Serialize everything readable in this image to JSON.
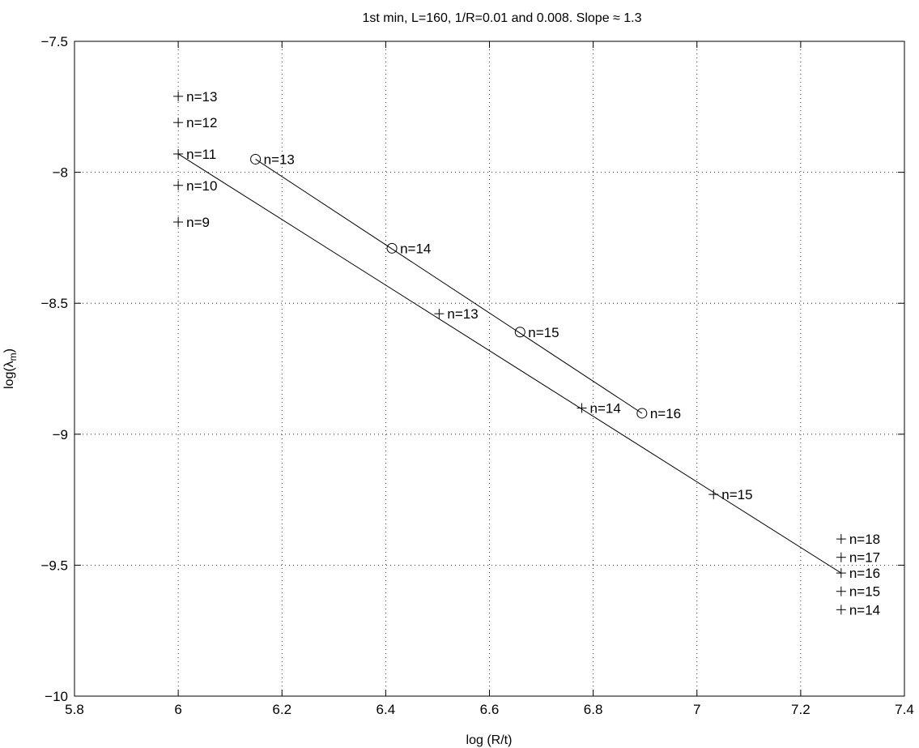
{
  "chart_data": {
    "type": "scatter",
    "title": "1st min, L=160, 1/R=0.01 and 0.008. Slope ≈ 1.3",
    "xlabel": "log (R/t)",
    "ylabel_main": "log(λ",
    "ylabel_sub": "m",
    "ylabel_close": ")",
    "xlim": [
      5.8,
      7.4
    ],
    "ylim": [
      -10,
      -7.5
    ],
    "xticks": [
      "5.8",
      "6",
      "6.2",
      "6.4",
      "6.6",
      "6.8",
      "7",
      "7.2",
      "7.4"
    ],
    "yticks": [
      "−7.5",
      "−8",
      "−8.5",
      "−9",
      "−9.5",
      "−10"
    ],
    "grid": true,
    "series": [
      {
        "marker": "plus",
        "points": [
          {
            "x": 6.0,
            "y": -7.71,
            "label": "n=13"
          },
          {
            "x": 6.0,
            "y": -7.81,
            "label": "n=12"
          },
          {
            "x": 6.0,
            "y": -7.93,
            "label": "n=11"
          },
          {
            "x": 6.0,
            "y": -8.05,
            "label": "n=10"
          },
          {
            "x": 6.0,
            "y": -8.19,
            "label": "n=9"
          },
          {
            "x": 6.503,
            "y": -8.54,
            "label": "n=13"
          },
          {
            "x": 6.778,
            "y": -8.9,
            "label": "n=14"
          },
          {
            "x": 7.032,
            "y": -9.23,
            "label": "n=15"
          },
          {
            "x": 7.278,
            "y": -9.4,
            "label": "n=18"
          },
          {
            "x": 7.278,
            "y": -9.47,
            "label": "n=17"
          },
          {
            "x": 7.278,
            "y": -9.53,
            "label": "n=16"
          },
          {
            "x": 7.278,
            "y": -9.6,
            "label": "n=15"
          },
          {
            "x": 7.278,
            "y": -9.67,
            "label": "n=14"
          }
        ],
        "line": [
          [
            6.0,
            -7.93
          ],
          [
            7.278,
            -9.53
          ]
        ]
      },
      {
        "marker": "circle",
        "points": [
          {
            "x": 6.149,
            "y": -7.95,
            "label": "n=13"
          },
          {
            "x": 6.412,
            "y": -8.29,
            "label": "n=14"
          },
          {
            "x": 6.659,
            "y": -8.61,
            "label": "n=15"
          },
          {
            "x": 6.894,
            "y": -8.92,
            "label": "n=16"
          }
        ],
        "line": [
          [
            6.149,
            -7.95
          ],
          [
            6.894,
            -8.92
          ]
        ]
      }
    ]
  }
}
